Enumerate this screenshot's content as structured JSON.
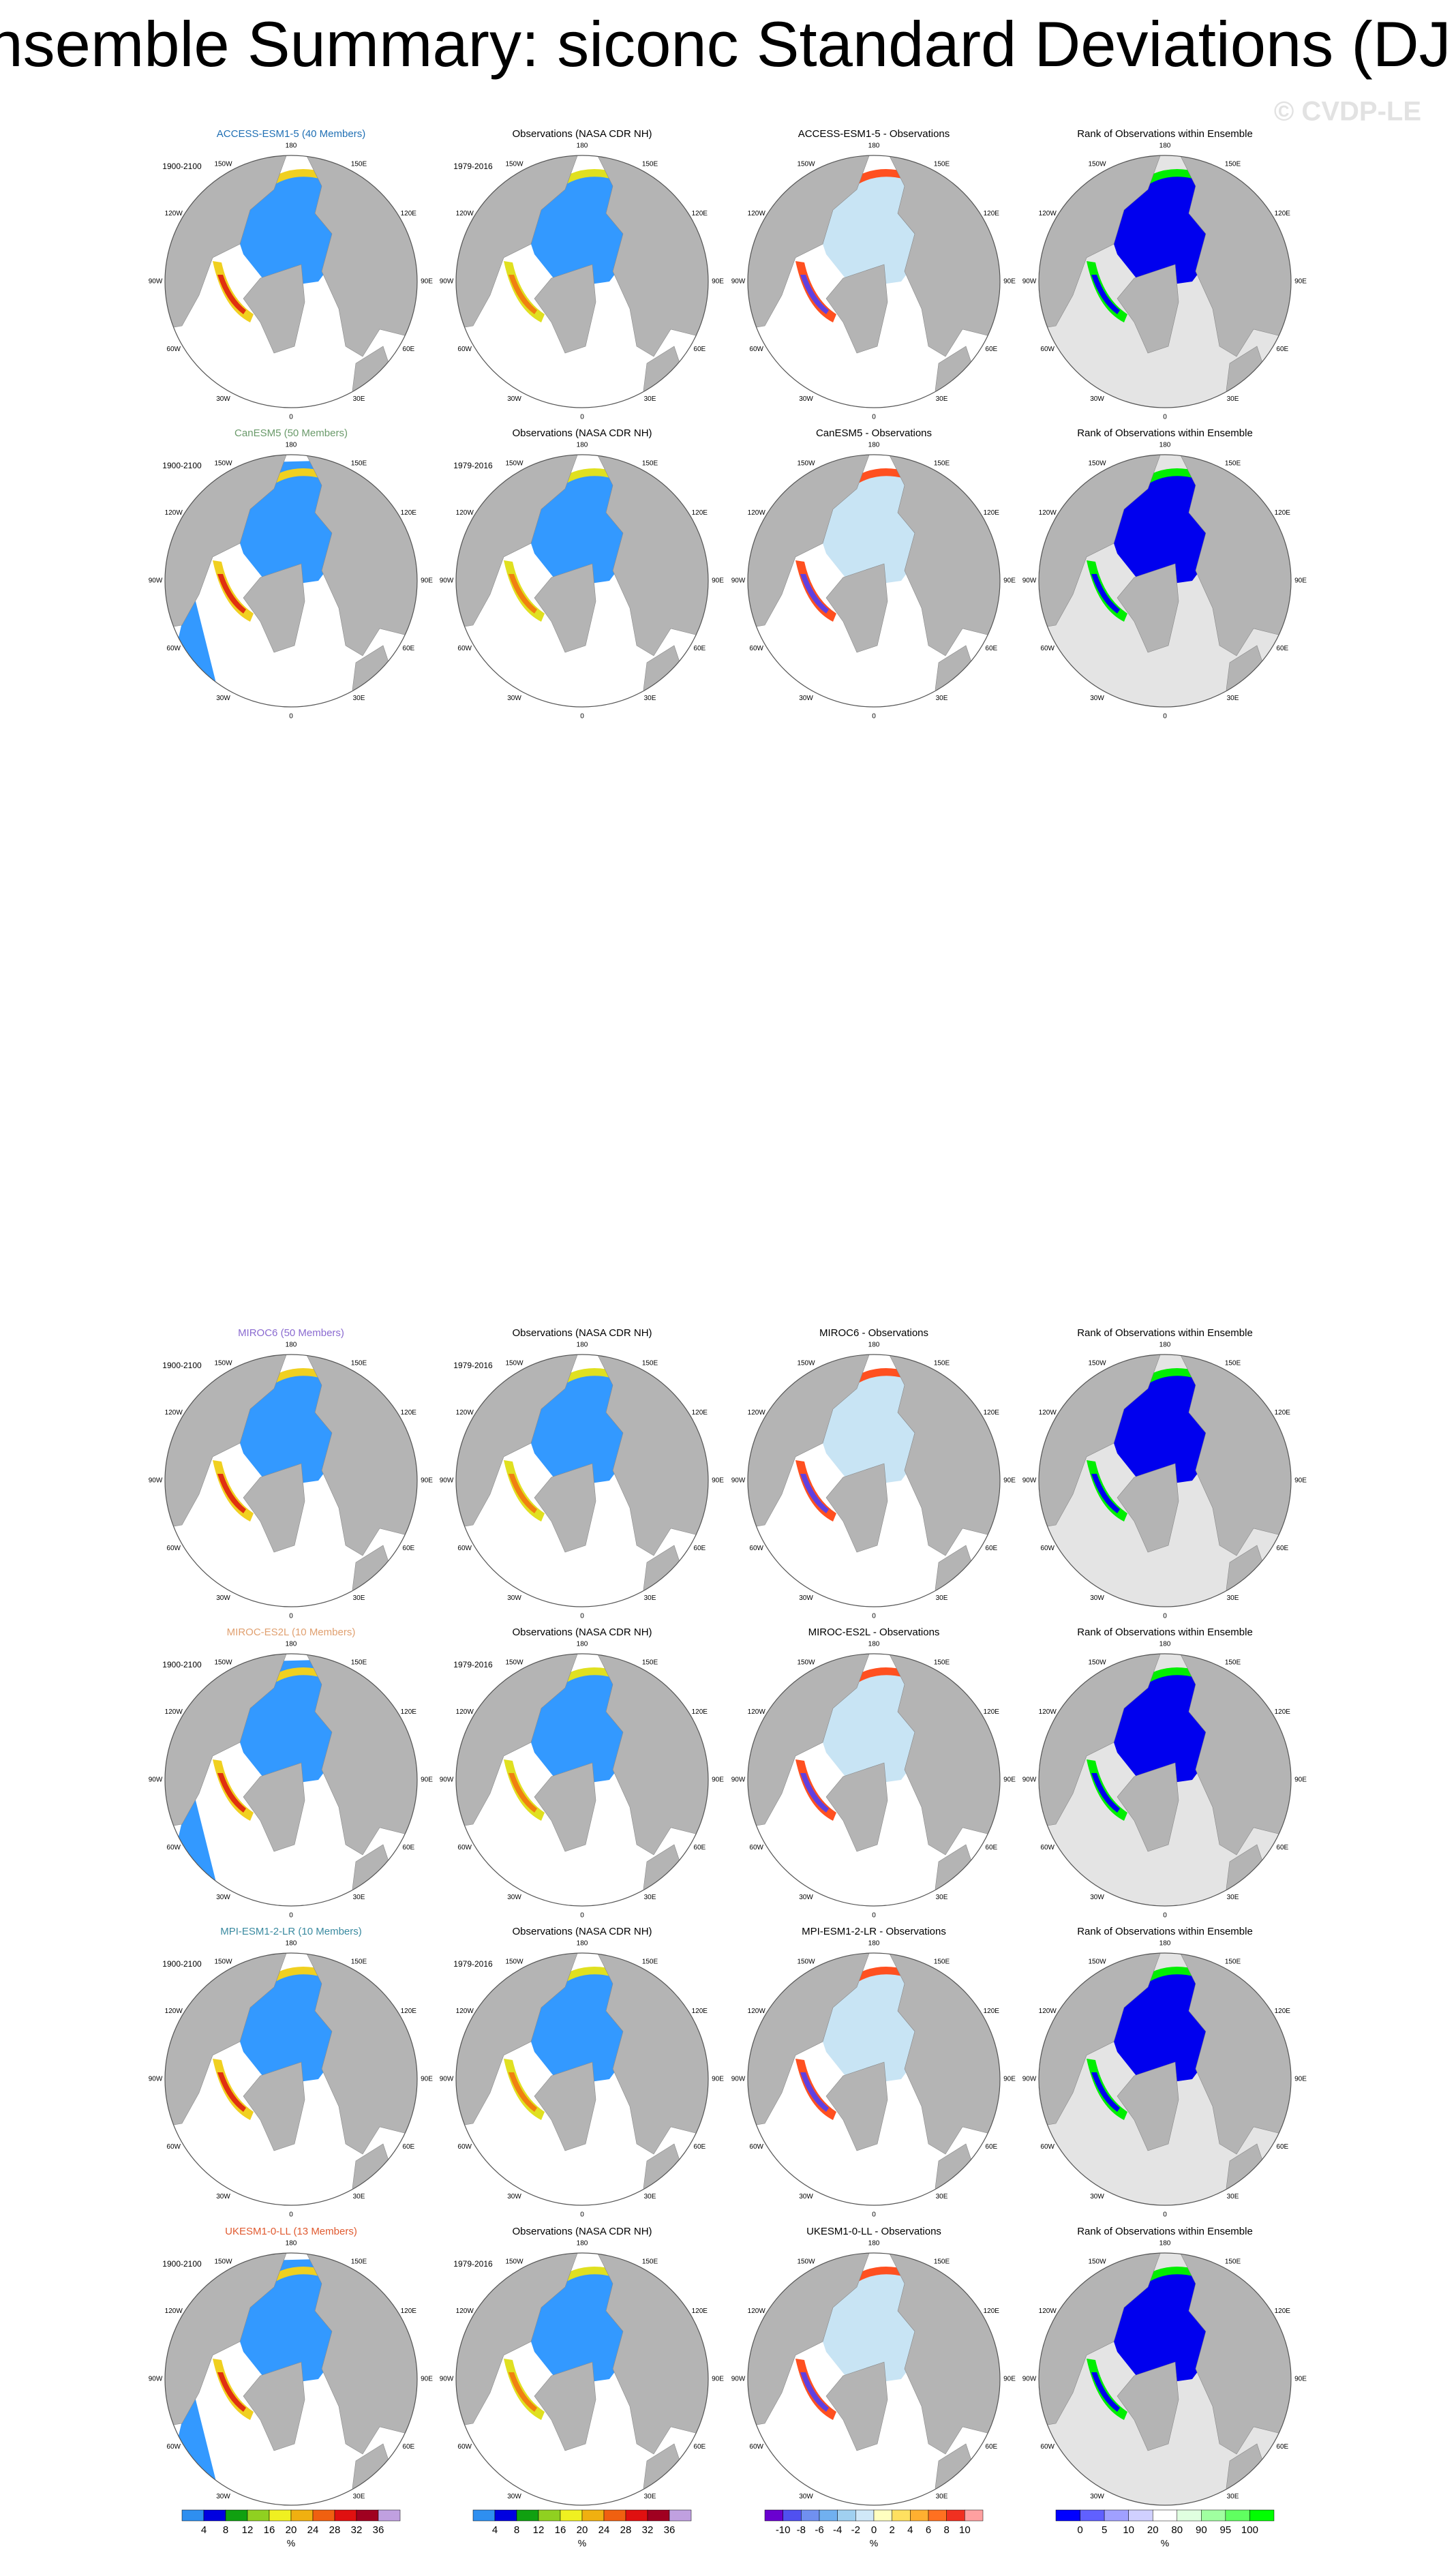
{
  "header": {
    "title": "Ensemble Summary: siconc Standard Deviations (DJF)",
    "watermark": "© CVDP-LE"
  },
  "period_labels": {
    "model": "1900-2100",
    "obs": "1979-2016"
  },
  "lon_labels": [
    "180",
    "150E",
    "120E",
    "90E",
    "60E",
    "30E",
    "0",
    "30W",
    "60W",
    "90W",
    "120W",
    "150W"
  ],
  "rows": [
    {
      "model_title": "ACCESS-ESM1-5 (40 Members)",
      "model_color": "#1f6fb4",
      "obs_title": "Observations (NASA CDR NH)",
      "diff_title": "ACCESS-ESM1-5 - Observations",
      "rank_title": "Rank of Observations within Ensemble"
    },
    {
      "model_title": "CanESM5 (50 Members)",
      "model_color": "#6a9a6a",
      "obs_title": "Observations (NASA CDR NH)",
      "diff_title": "CanESM5 - Observations",
      "rank_title": "Rank of Observations within Ensemble"
    },
    {
      "model_title": "MIROC6 (50 Members)",
      "model_color": "#8a6ad0",
      "obs_title": "Observations (NASA CDR NH)",
      "diff_title": "MIROC6 - Observations",
      "rank_title": "Rank of Observations within Ensemble"
    },
    {
      "model_title": "MIROC-ES2L (10 Members)",
      "model_color": "#e0a070",
      "obs_title": "Observations (NASA CDR NH)",
      "diff_title": "MIROC-ES2L - Observations",
      "rank_title": "Rank of Observations within Ensemble"
    },
    {
      "model_title": "MPI-ESM1-2-LR (10 Members)",
      "model_color": "#3a8aa0",
      "obs_title": "Observations (NASA CDR NH)",
      "diff_title": "MPI-ESM1-2-LR - Observations",
      "rank_title": "Rank of Observations within Ensemble"
    },
    {
      "model_title": "UKESM1-0-LL (13 Members)",
      "model_color": "#e05a30",
      "obs_title": "Observations (NASA CDR NH)",
      "diff_title": "UKESM1-0-LL - Observations",
      "rank_title": "Rank of Observations within Ensemble"
    }
  ],
  "colorbars": [
    {
      "ticks": [
        4,
        8,
        12,
        16,
        20,
        24,
        28,
        32,
        36
      ],
      "unit": "%"
    },
    {
      "ticks": [
        4,
        8,
        12,
        16,
        20,
        24,
        28,
        32,
        36
      ],
      "unit": "%"
    },
    {
      "ticks": [
        -10,
        -8,
        -6,
        -4,
        -2,
        0,
        2,
        4,
        6,
        8,
        10
      ],
      "unit": "%"
    },
    {
      "ticks": [
        0,
        5,
        10,
        20,
        80,
        90,
        95,
        100
      ],
      "unit": "%"
    }
  ]
}
